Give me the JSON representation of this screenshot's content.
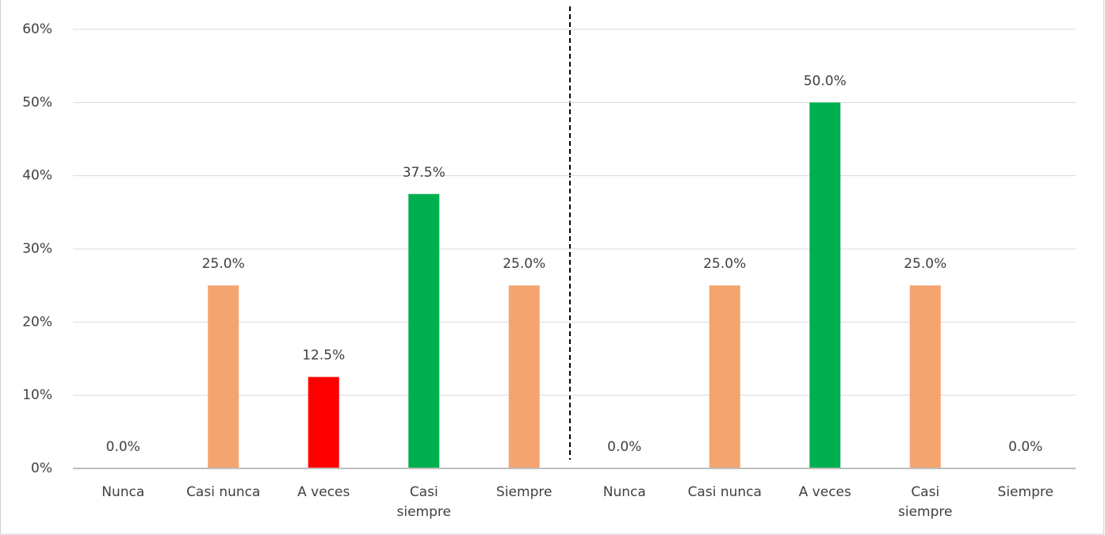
{
  "chart_data": {
    "type": "bar",
    "categories": [
      "Nunca",
      "Casi nunca",
      "A veces",
      "Casi siempre",
      "Siempre",
      "Nunca",
      "Casi nunca",
      "A veces",
      "Casi siempre",
      "Siempre"
    ],
    "values": [
      0,
      25,
      12.5,
      37.5,
      25,
      0,
      25,
      50,
      25,
      0
    ],
    "value_labels": [
      "0.0%",
      "25.0%",
      "12.5%",
      "37.5%",
      "25.0%",
      "0.0%",
      "25.0%",
      "50.0%",
      "25.0%",
      "0.0%"
    ],
    "colors": [
      "#f4a46f",
      "#f4a46f",
      "#ff0000",
      "#00b050",
      "#f4a46f",
      "#f4a46f",
      "#f4a46f",
      "#00b050",
      "#f4a46f",
      "#f4a46f"
    ],
    "ylim": [
      0,
      60
    ],
    "yticks": [
      {
        "value": 0,
        "label": "0%"
      },
      {
        "value": 10,
        "label": "10%"
      },
      {
        "value": 20,
        "label": "20%"
      },
      {
        "value": 30,
        "label": "30%"
      },
      {
        "value": 40,
        "label": "40%"
      },
      {
        "value": 50,
        "label": "50%"
      },
      {
        "value": 60,
        "label": "60%"
      }
    ],
    "grid": true
  }
}
